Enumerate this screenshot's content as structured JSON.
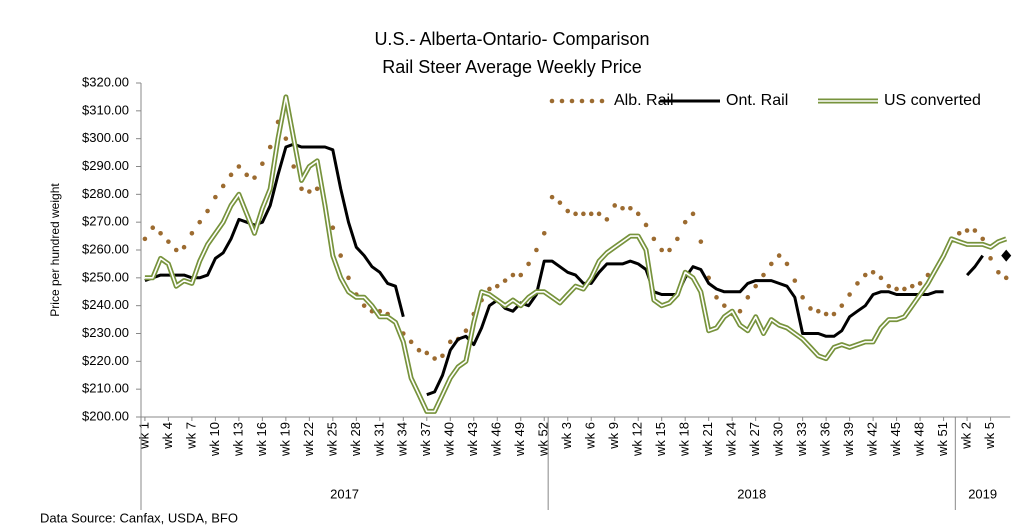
{
  "chart_data": {
    "type": "line",
    "title": "U.S.- Alberta-Ontario- Comparison",
    "subtitle": "Rail Steer Average Weekly  Price",
    "y_label": "Price per hundred weight",
    "source": "Data Source: Canfax, USDA, BFO",
    "legend": "upper right",
    "grid": false,
    "categories": [
      "wk 1",
      null,
      null,
      "wk 4",
      null,
      null,
      "wk 7",
      null,
      null,
      "wk 10",
      null,
      null,
      "wk 13",
      null,
      null,
      "wk 16",
      null,
      null,
      "wk 19",
      null,
      null,
      "wk 22",
      null,
      null,
      "wk 25",
      null,
      null,
      "wk 28",
      null,
      null,
      "wk 31",
      null,
      null,
      "wk 34",
      null,
      null,
      "wk 37",
      null,
      null,
      "wk 40",
      null,
      null,
      "wk 43",
      null,
      null,
      "wk 46",
      null,
      null,
      "wk 49",
      null,
      null,
      "wk 52",
      null,
      null,
      "wk 3",
      null,
      null,
      "wk 6",
      null,
      null,
      "wk 9",
      null,
      null,
      "wk 12",
      null,
      null,
      "wk 15",
      null,
      null,
      "wk 18",
      null,
      null,
      "wk 21",
      null,
      null,
      "wk 24",
      null,
      null,
      "wk 27",
      null,
      null,
      "wk 30",
      null,
      null,
      "wk 33",
      null,
      null,
      "wk 36",
      null,
      null,
      "wk 39",
      null,
      null,
      "wk 42",
      null,
      null,
      "wk 45",
      null,
      null,
      "wk 48",
      null,
      null,
      "wk 51",
      null,
      null,
      "wk 2",
      null,
      null,
      "wk 5",
      null,
      null
    ],
    "groups": [
      {
        "label": "2017",
        "span": 52
      },
      {
        "label": "2018",
        "span": 52
      },
      {
        "label": "2019",
        "span": 7
      }
    ],
    "ylim": [
      200,
      320
    ],
    "yticks": [
      {
        "value": 200,
        "label": "$200.00"
      },
      {
        "value": 210,
        "label": "$210.00"
      },
      {
        "value": 220,
        "label": "$220.00"
      },
      {
        "value": 230,
        "label": "$230.00"
      },
      {
        "value": 240,
        "label": "$240.00"
      },
      {
        "value": 250,
        "label": "$250.00"
      },
      {
        "value": 260,
        "label": "$260.00"
      },
      {
        "value": 270,
        "label": "$270.00"
      },
      {
        "value": 280,
        "label": "$280.00"
      },
      {
        "value": 290,
        "label": "$290.00"
      },
      {
        "value": 300,
        "label": "$300.00"
      },
      {
        "value": 310,
        "label": "$310.00"
      },
      {
        "value": 320,
        "label": "$320.00"
      }
    ],
    "series": [
      {
        "name": "Alb. Rail",
        "color": "#9c6b30",
        "style": "dotted",
        "values": [
          264,
          268,
          266,
          263,
          260,
          261,
          266,
          270,
          274,
          279,
          283,
          287,
          290,
          287,
          286,
          291,
          297,
          306,
          300,
          290,
          282,
          281,
          282,
          276,
          268,
          258,
          250,
          244,
          240,
          238,
          238,
          237,
          234,
          230,
          227,
          224,
          223,
          221,
          222,
          227,
          228,
          231,
          237,
          242,
          246,
          247,
          249,
          251,
          251,
          255,
          260,
          266,
          279,
          277,
          274,
          273,
          273,
          273,
          273,
          271,
          276,
          275,
          275,
          273,
          269,
          264,
          260,
          260,
          264,
          270,
          273,
          263,
          250,
          243,
          240,
          237,
          238,
          243,
          247,
          251,
          255,
          258,
          255,
          249,
          243,
          239,
          238,
          237,
          237,
          240,
          244,
          248,
          251,
          252,
          250,
          247,
          246,
          246,
          247,
          248,
          251,
          253,
          258,
          264,
          266,
          267,
          267,
          264,
          257,
          252,
          250
        ]
      },
      {
        "name": "Ont. Rail",
        "color": "#000000",
        "style": "solid",
        "values": [
          249,
          250,
          251,
          251,
          251,
          251,
          250,
          250,
          251,
          257,
          259,
          264,
          271,
          270,
          269,
          270,
          276,
          287,
          297,
          298,
          297,
          297,
          297,
          297,
          296,
          282,
          270,
          261,
          258,
          254,
          252,
          248,
          247,
          236,
          null,
          null,
          208,
          209,
          215,
          224,
          228,
          229,
          226,
          232,
          240,
          242,
          239,
          238,
          241,
          240,
          244,
          256,
          256,
          254,
          252,
          251,
          248,
          248,
          252,
          255,
          255,
          255,
          256,
          255,
          253,
          245,
          244,
          244,
          244,
          250,
          254,
          253,
          248,
          246,
          245,
          245,
          245,
          248,
          249,
          249,
          249,
          248,
          247,
          243,
          230,
          230,
          230,
          229,
          229,
          231,
          236,
          238,
          240,
          244,
          245,
          245,
          244,
          244,
          244,
          244,
          244,
          245,
          245,
          null,
          null,
          251,
          254,
          258,
          null,
          null,
          258
        ]
      },
      {
        "name": "US converted",
        "color": "#77933c",
        "style": "double",
        "values": [
          250,
          250,
          257,
          255,
          247,
          249,
          248,
          256,
          262,
          266,
          270,
          276,
          280,
          273,
          266,
          275,
          282,
          300,
          315,
          300,
          285,
          290,
          292,
          276,
          258,
          250,
          245,
          243,
          243,
          240,
          236,
          236,
          234,
          227,
          214,
          208,
          202,
          202,
          208,
          214,
          218,
          220,
          234,
          245,
          244,
          242,
          240,
          242,
          240,
          243,
          245,
          245,
          243,
          241,
          244,
          247,
          246,
          250,
          256,
          259,
          261,
          263,
          265,
          265,
          260,
          242,
          240,
          241,
          244,
          252,
          250,
          245,
          231,
          232,
          236,
          238,
          233,
          231,
          236,
          230,
          235,
          233,
          232,
          230,
          228,
          225,
          222,
          221,
          225,
          226,
          225,
          226,
          227,
          227,
          232,
          235,
          235,
          236,
          240,
          244,
          248,
          253,
          258,
          264,
          263,
          262,
          262,
          262,
          261,
          263,
          264
        ]
      }
    ]
  }
}
